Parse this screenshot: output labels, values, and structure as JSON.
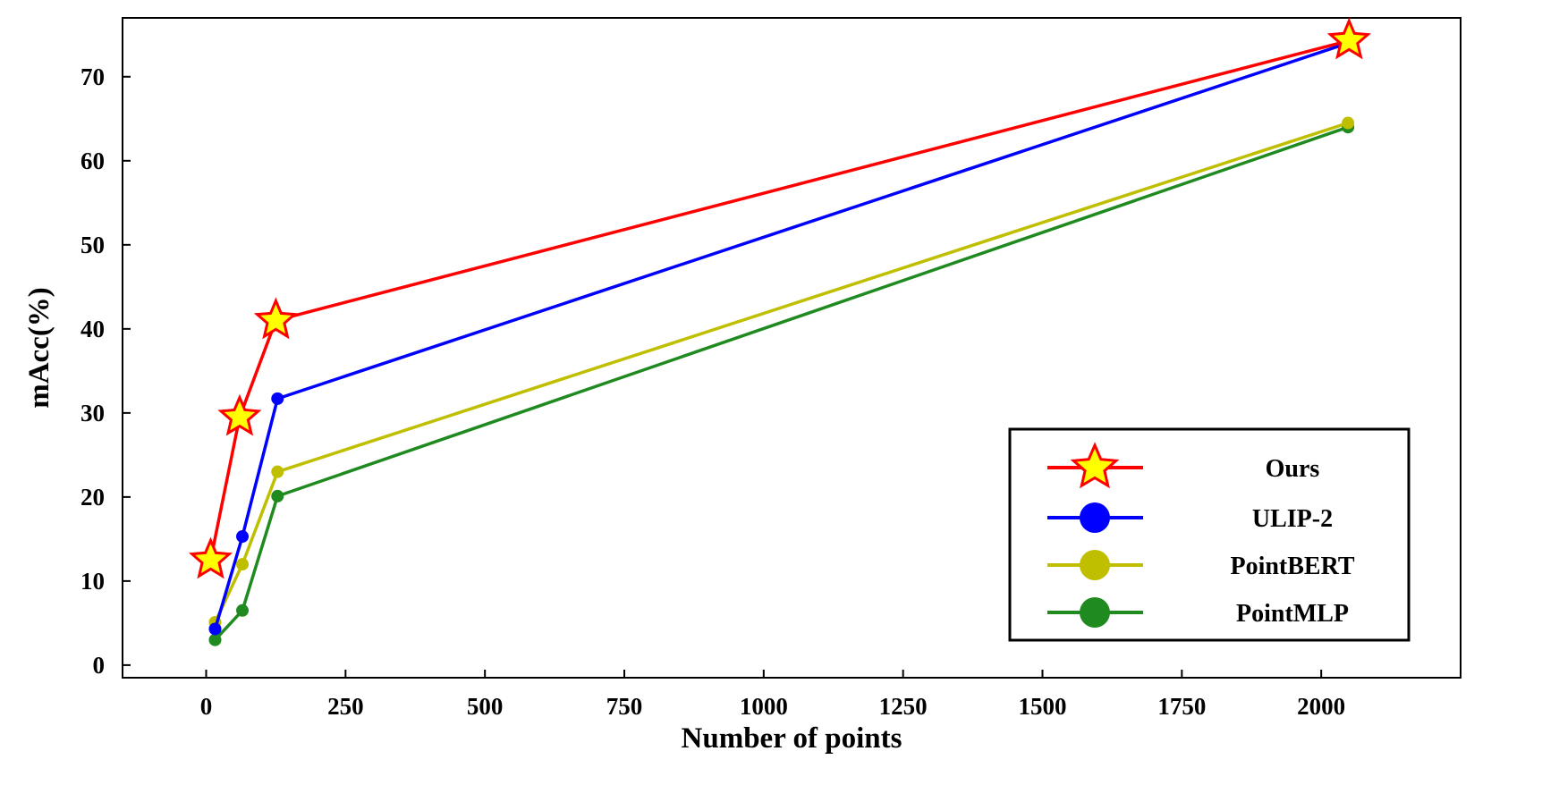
{
  "chart_data": {
    "type": "line",
    "title": "",
    "xlabel": "Number of points",
    "ylabel": "mAcc(%)",
    "xlim": [
      -150,
      2250
    ],
    "ylim": [
      -1.5,
      77
    ],
    "xticks": [
      0,
      250,
      500,
      750,
      1000,
      1250,
      1500,
      1750,
      2000
    ],
    "yticks": [
      0,
      10,
      20,
      30,
      40,
      50,
      60,
      70
    ],
    "grid": false,
    "legend_position": "lower-right",
    "series": [
      {
        "name": "Ours",
        "color": "#ff0000",
        "marker": "star",
        "marker_fill": "#ffff00",
        "x": [
          8,
          60,
          125,
          2050
        ],
        "y": [
          12.5,
          29.5,
          41,
          74.3
        ]
      },
      {
        "name": "ULIP-2",
        "color": "#0000ff",
        "marker": "circle",
        "marker_fill": "#0000ff",
        "x": [
          16,
          65,
          128,
          2048
        ],
        "y": [
          4.3,
          15.3,
          31.7,
          74
        ]
      },
      {
        "name": "PointBERT",
        "color": "#bfbf00",
        "marker": "circle",
        "marker_fill": "#bfbf00",
        "x": [
          16,
          65,
          128,
          2048
        ],
        "y": [
          5.1,
          12,
          23,
          64.5
        ]
      },
      {
        "name": "PointMLP",
        "color": "#1f8a1f",
        "marker": "circle",
        "marker_fill": "#1f8a1f",
        "x": [
          16,
          65,
          128,
          2048
        ],
        "y": [
          3,
          6.5,
          20.1,
          64
        ]
      }
    ]
  }
}
